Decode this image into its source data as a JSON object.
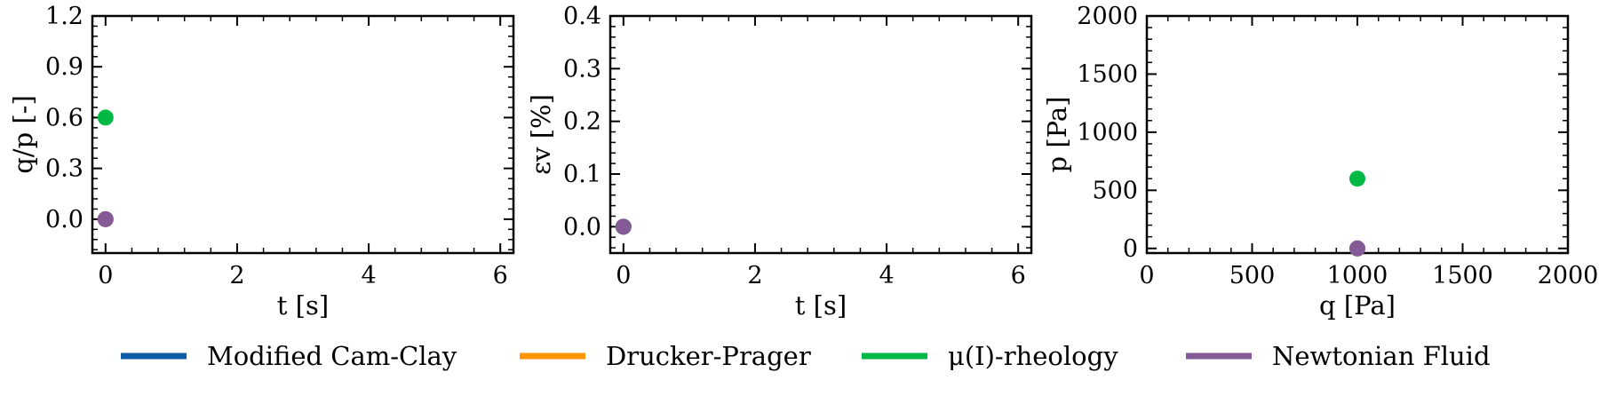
{
  "chart_data": [
    {
      "type": "scatter",
      "xlabel": "t [s]",
      "ylabel": "q/p [-]",
      "xlim": [
        -0.2,
        6.2
      ],
      "ylim": [
        -0.2,
        1.2
      ],
      "xticks": [
        0,
        2,
        4,
        6
      ],
      "xtick_labels": [
        "0",
        "2",
        "4",
        "6"
      ],
      "yticks": [
        0.0,
        0.3,
        0.6,
        0.9,
        1.2
      ],
      "ytick_labels": [
        "0.0",
        "0.3",
        "0.6",
        "0.9",
        "1.2"
      ],
      "grid": false,
      "series": [
        {
          "name": "Modified Cam-Clay",
          "color": "#0c5da5",
          "points": [
            [
              0,
              0.0
            ]
          ]
        },
        {
          "name": "Drucker-Prager",
          "color": "#ff9500",
          "points": [
            [
              0,
              0.0
            ]
          ]
        },
        {
          "name": "μ(I)-rheology",
          "color": "#00b945",
          "points": [
            [
              0,
              0.6
            ]
          ]
        },
        {
          "name": "Newtonian Fluid",
          "color": "#845b97",
          "points": [
            [
              0,
              0.0
            ]
          ]
        }
      ]
    },
    {
      "type": "scatter",
      "xlabel": "t [s]",
      "ylabel": "εv [%]",
      "xlim": [
        -0.2,
        6.2
      ],
      "ylim": [
        -0.05,
        0.4
      ],
      "xticks": [
        0,
        2,
        4,
        6
      ],
      "xtick_labels": [
        "0",
        "2",
        "4",
        "6"
      ],
      "yticks": [
        0.0,
        0.1,
        0.2,
        0.3,
        0.4
      ],
      "ytick_labels": [
        "0.0",
        "0.1",
        "0.2",
        "0.3",
        "0.4"
      ],
      "grid": false,
      "series": [
        {
          "name": "Modified Cam-Clay",
          "color": "#0c5da5",
          "points": [
            [
              0,
              0.0
            ]
          ]
        },
        {
          "name": "Drucker-Prager",
          "color": "#ff9500",
          "points": [
            [
              0,
              0.0
            ]
          ]
        },
        {
          "name": "μ(I)-rheology",
          "color": "#00b945",
          "points": [
            [
              0,
              0.0
            ]
          ]
        },
        {
          "name": "Newtonian Fluid",
          "color": "#845b97",
          "points": [
            [
              0,
              0.0
            ]
          ]
        }
      ]
    },
    {
      "type": "scatter",
      "xlabel": "q [Pa]",
      "ylabel": "p [Pa]",
      "xlim": [
        0,
        2000
      ],
      "ylim": [
        -40,
        2000
      ],
      "xticks": [
        0,
        500,
        1000,
        1500,
        2000
      ],
      "xtick_labels": [
        "0",
        "500",
        "1000",
        "1500",
        "2000"
      ],
      "yticks": [
        0,
        500,
        1000,
        1500,
        2000
      ],
      "ytick_labels": [
        "0",
        "500",
        "1000",
        "1500",
        "2000"
      ],
      "grid": false,
      "series": [
        {
          "name": "Modified Cam-Clay",
          "color": "#0c5da5",
          "points": [
            [
              1000,
              0
            ]
          ]
        },
        {
          "name": "Drucker-Prager",
          "color": "#ff9500",
          "points": [
            [
              1000,
              0
            ]
          ]
        },
        {
          "name": "μ(I)-rheology",
          "color": "#00b945",
          "points": [
            [
              1000,
              600
            ]
          ]
        },
        {
          "name": "Newtonian Fluid",
          "color": "#845b97",
          "points": [
            [
              1000,
              0
            ]
          ]
        }
      ]
    }
  ],
  "legend": {
    "placement": "bottom",
    "entries": [
      {
        "label": "Modified Cam-Clay",
        "color": "#0c5da5"
      },
      {
        "label": "Drucker-Prager",
        "color": "#ff9500"
      },
      {
        "label": "μ(I)-rheology",
        "color": "#00b945"
      },
      {
        "label": "Newtonian Fluid",
        "color": "#845b97"
      }
    ]
  }
}
